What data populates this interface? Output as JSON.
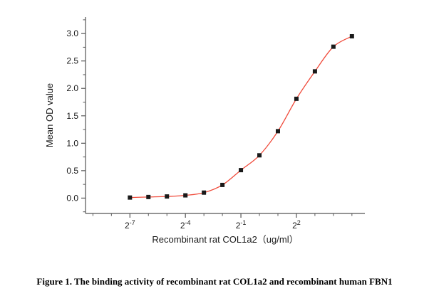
{
  "figure": {
    "caption": "Figure 1. The binding activity of recombinant rat COL1a2 and recombinant human FBN1"
  },
  "chart_data": {
    "type": "line",
    "title": "",
    "xlabel": "Recombinant rat COL1a2（ug/ml）",
    "ylabel": "Mean OD value",
    "x_scale": "log2",
    "x_exponents": [
      -7,
      -6,
      -5,
      -4,
      -3,
      -2,
      -1,
      0,
      1,
      2,
      3,
      4,
      5
    ],
    "values": [
      0.01,
      0.02,
      0.03,
      0.05,
      0.1,
      0.24,
      0.51,
      0.78,
      1.22,
      1.81,
      2.31,
      2.76,
      2.95
    ],
    "x_major_tick_exponents": [
      -7,
      -4,
      -1,
      2
    ],
    "x_minor_tick_exponents": [
      -9,
      -8,
      -6,
      -5,
      -3,
      -2,
      0,
      1,
      3,
      4,
      5
    ],
    "x_tick_base": "2",
    "y_ticks": [
      0.0,
      0.5,
      1.0,
      1.5,
      2.0,
      2.5,
      3.0
    ],
    "y_tick_labels": [
      "0.0",
      "0.5",
      "1.0",
      "1.5",
      "2.0",
      "2.5",
      "3.0"
    ],
    "y_minor_step": 0.25,
    "xlim_exponents": [
      -9.4,
      5.7
    ],
    "ylim": [
      -0.28,
      3.3
    ],
    "grid": false,
    "legend": false,
    "curve_color": "#f04a3a",
    "marker_color": "#1a1a1a",
    "axis_color": "#555555"
  }
}
